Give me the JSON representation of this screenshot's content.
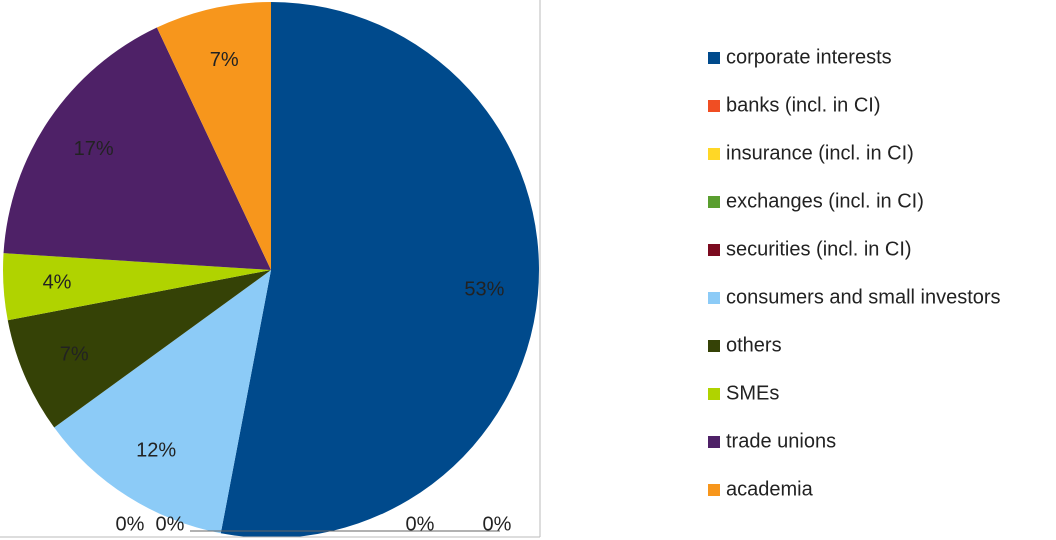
{
  "chart_data": {
    "type": "pie",
    "categories": [
      "corporate interests",
      "banks (incl. in CI)",
      "insurance (incl. in CI)",
      "exchanges (incl. in CI)",
      "securities (incl. in CI)",
      "consumers and small investors",
      "others",
      "SMEs",
      "trade unions",
      "academia"
    ],
    "values": [
      53,
      0,
      0,
      0,
      0,
      12,
      7,
      4,
      17,
      7
    ],
    "value_labels": [
      "53%",
      "0%",
      "0%",
      "0%",
      "0%",
      "12%",
      "7%",
      "4%",
      "17%",
      "7%"
    ],
    "colors": [
      "#004a8c",
      "#f04e23",
      "#ffd726",
      "#5a9e2f",
      "#7b0b1f",
      "#8ccbf7",
      "#354206",
      "#b0d300",
      "#4e2167",
      "#f7961c"
    ],
    "legend": "right"
  }
}
